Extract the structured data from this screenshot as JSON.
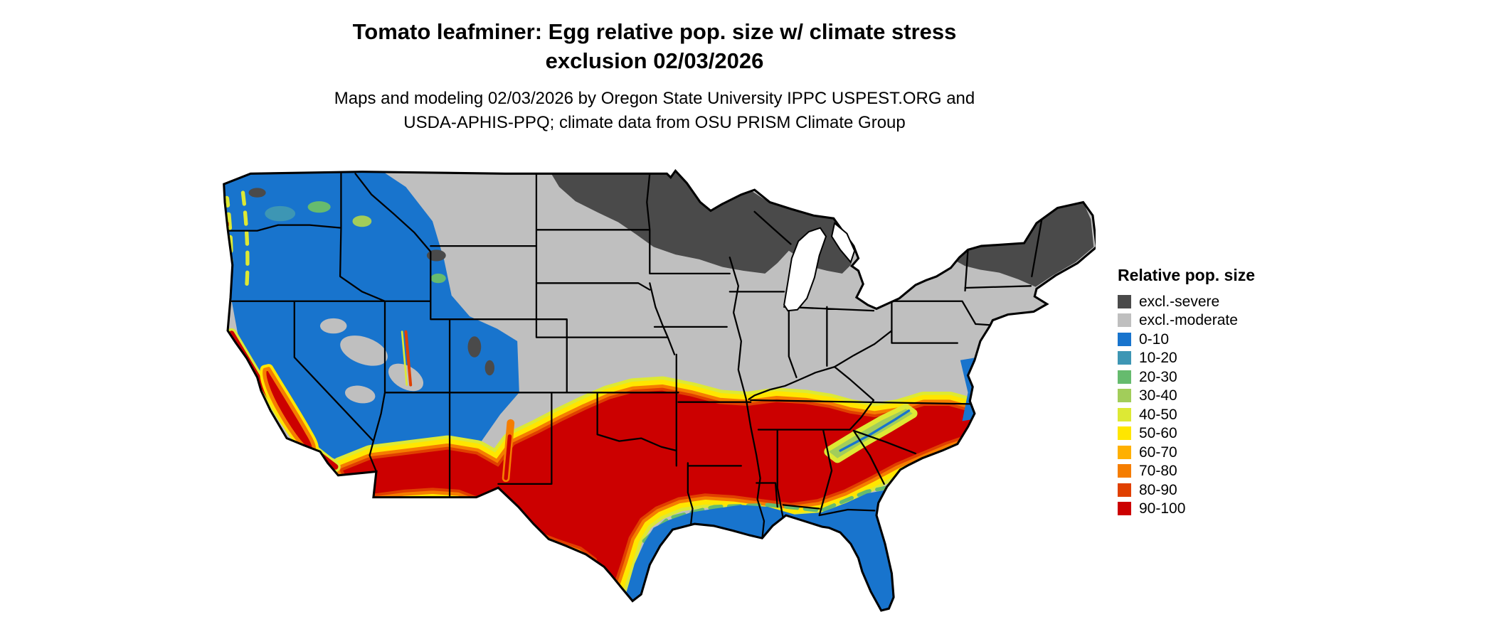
{
  "title": {
    "line1": "Tomato leafminer: Egg relative pop. size w/ climate stress",
    "line2": "exclusion 02/03/2026"
  },
  "subtitle": {
    "line1": "Maps and modeling 02/03/2026 by Oregon State University IPPC USPEST.ORG and",
    "line2": "USDA-APHIS-PPQ; climate data from OSU PRISM Climate Group"
  },
  "legend": {
    "title": "Relative pop. size",
    "items": [
      {
        "label": "excl.-severe",
        "color": "#4a4a4a"
      },
      {
        "label": "excl.-moderate",
        "color": "#bfbfbf"
      },
      {
        "label": "0-10",
        "color": "#1874cd"
      },
      {
        "label": "10-20",
        "color": "#3d96b4"
      },
      {
        "label": "20-30",
        "color": "#66bb6e"
      },
      {
        "label": "30-40",
        "color": "#a2cd5a"
      },
      {
        "label": "40-50",
        "color": "#dde934"
      },
      {
        "label": "50-60",
        "color": "#ffe600"
      },
      {
        "label": "60-70",
        "color": "#ffb000"
      },
      {
        "label": "70-80",
        "color": "#f57d00"
      },
      {
        "label": "80-90",
        "color": "#e04000"
      },
      {
        "label": "90-100",
        "color": "#cc0000"
      }
    ]
  },
  "map": {
    "water_color": "#ffffff",
    "border_color": "#000000"
  }
}
